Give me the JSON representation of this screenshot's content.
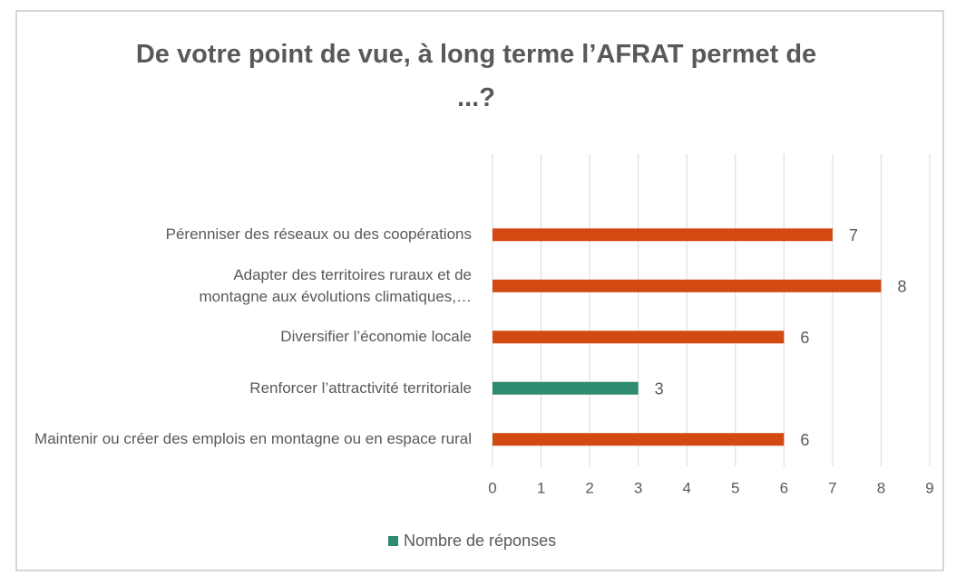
{
  "chart_data": {
    "type": "bar",
    "orientation": "horizontal",
    "title": "De votre point de vue, à long terme l’AFRAT permet de ...?",
    "categories": [
      "Pérenniser des réseaux ou des coopérations",
      "Adapter des territoires ruraux et de montagne aux évolutions climatiques,…",
      "Diversifier l’économie locale",
      "Renforcer l’attractivité territoriale",
      "Maintenir ou créer des emplois en montagne ou en espace rural"
    ],
    "series": [
      {
        "name": "Nombre de réponses",
        "color": "#2e8b72",
        "values": [
          7,
          8,
          6,
          3,
          6
        ],
        "colors": [
          "#d24a12",
          "#d24a12",
          "#d24a12",
          "#2e8b72",
          "#d24a12"
        ]
      }
    ],
    "xlim": [
      0,
      9
    ],
    "xticks": [
      0,
      1,
      2,
      3,
      4,
      5,
      6,
      7,
      8,
      9
    ],
    "grid": true,
    "legend": "bottom"
  }
}
